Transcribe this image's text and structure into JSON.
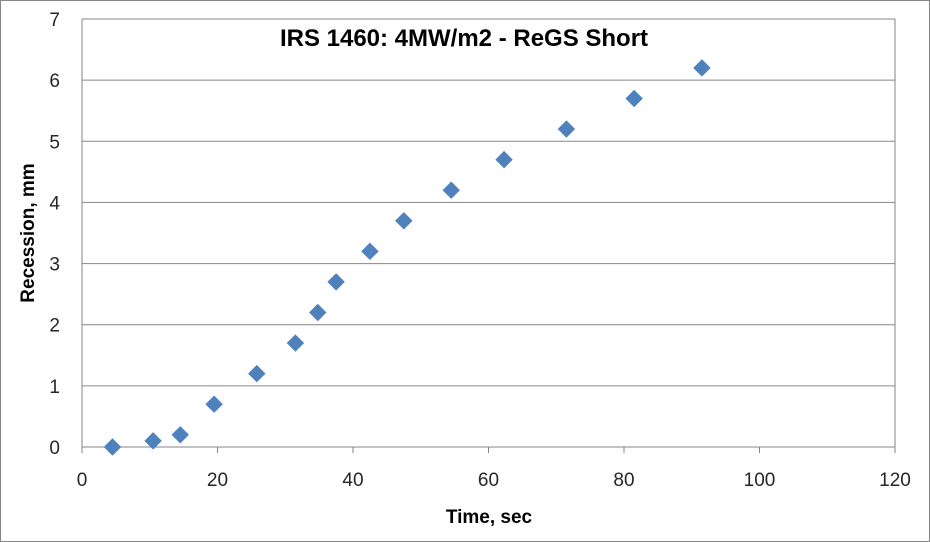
{
  "chart_data": {
    "type": "scatter",
    "title": "IRS 1460: 4MW/m2 - ReGS Short",
    "xlabel": "Time, sec",
    "ylabel": "Recession, mm",
    "xlim": [
      0,
      120
    ],
    "ylim": [
      0,
      7
    ],
    "xticks": [
      "0",
      "20",
      "40",
      "60",
      "80",
      "100",
      "120"
    ],
    "yticks": [
      "0",
      "1",
      "2",
      "3",
      "4",
      "5",
      "6",
      "7"
    ],
    "grid": "horizontal",
    "marker": "diamond",
    "marker_color": "#4F81BD",
    "series": [
      {
        "x": [
          4.5,
          10.5,
          14.5,
          19.5,
          25.8,
          31.5,
          34.8,
          37.5,
          42.5,
          47.5,
          54.5,
          62.3,
          71.5,
          81.5,
          91.5
        ],
        "y": [
          0.0,
          0.1,
          0.2,
          0.7,
          1.2,
          1.7,
          2.2,
          2.7,
          3.2,
          3.7,
          4.2,
          4.7,
          5.2,
          5.7,
          6.2
        ]
      }
    ]
  }
}
